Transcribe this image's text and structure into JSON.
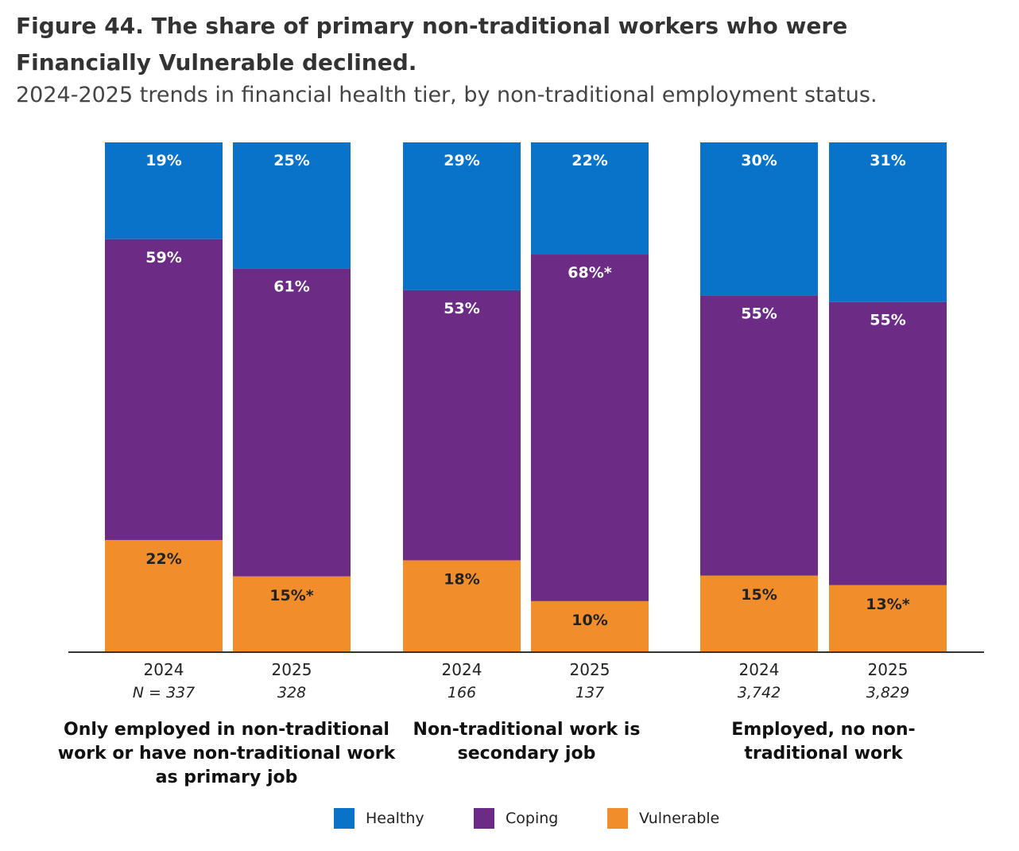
{
  "title": "Figure 44. The share of primary non-traditional workers who were Financially Vulnerable declined.",
  "subtitle": "2024-2025 trends in financial health tier, by non-traditional employment status.",
  "colors": {
    "healthy": "#0873c9",
    "coping": "#6c2c85",
    "vulnerable": "#f28d2b",
    "axis": "#333333"
  },
  "chart_data": {
    "type": "bar",
    "stacked": true,
    "series_names": [
      "Healthy",
      "Coping",
      "Vulnerable"
    ],
    "groups": [
      {
        "label": "Only employed in non-traditional work or have non-traditional work as primary job",
        "bars": [
          {
            "year": "2024",
            "n": "N = 337",
            "healthy": 19,
            "coping": 59,
            "vulnerable": 22,
            "labels": {
              "healthy": "19%",
              "coping": "59%",
              "vulnerable": "22%"
            }
          },
          {
            "year": "2025",
            "n": "328",
            "healthy": 25,
            "coping": 61,
            "vulnerable": 15,
            "labels": {
              "healthy": "25%",
              "coping": "61%",
              "vulnerable": "15%*"
            }
          }
        ]
      },
      {
        "label": "Non-traditional work is secondary job",
        "bars": [
          {
            "year": "2024",
            "n": "166",
            "healthy": 29,
            "coping": 53,
            "vulnerable": 18,
            "labels": {
              "healthy": "29%",
              "coping": "53%",
              "vulnerable": "18%"
            }
          },
          {
            "year": "2025",
            "n": "137",
            "healthy": 22,
            "coping": 68,
            "vulnerable": 10,
            "labels": {
              "healthy": "22%",
              "coping": "68%*",
              "vulnerable": "10%"
            }
          }
        ]
      },
      {
        "label": "Employed, no non-traditional work",
        "bars": [
          {
            "year": "2024",
            "n": "3,742",
            "healthy": 30,
            "coping": 55,
            "vulnerable": 15,
            "labels": {
              "healthy": "30%",
              "coping": "55%",
              "vulnerable": "15%"
            }
          },
          {
            "year": "2025",
            "n": "3,829",
            "healthy": 31,
            "coping": 55,
            "vulnerable": 13,
            "labels": {
              "healthy": "31%",
              "coping": "55%",
              "vulnerable": "13%*"
            }
          }
        ]
      }
    ],
    "ylim": [
      0,
      100
    ]
  },
  "legend": [
    {
      "name": "Healthy",
      "color": "#0873c9"
    },
    {
      "name": "Coping",
      "color": "#6c2c85"
    },
    {
      "name": "Vulnerable",
      "color": "#f28d2b"
    }
  ]
}
